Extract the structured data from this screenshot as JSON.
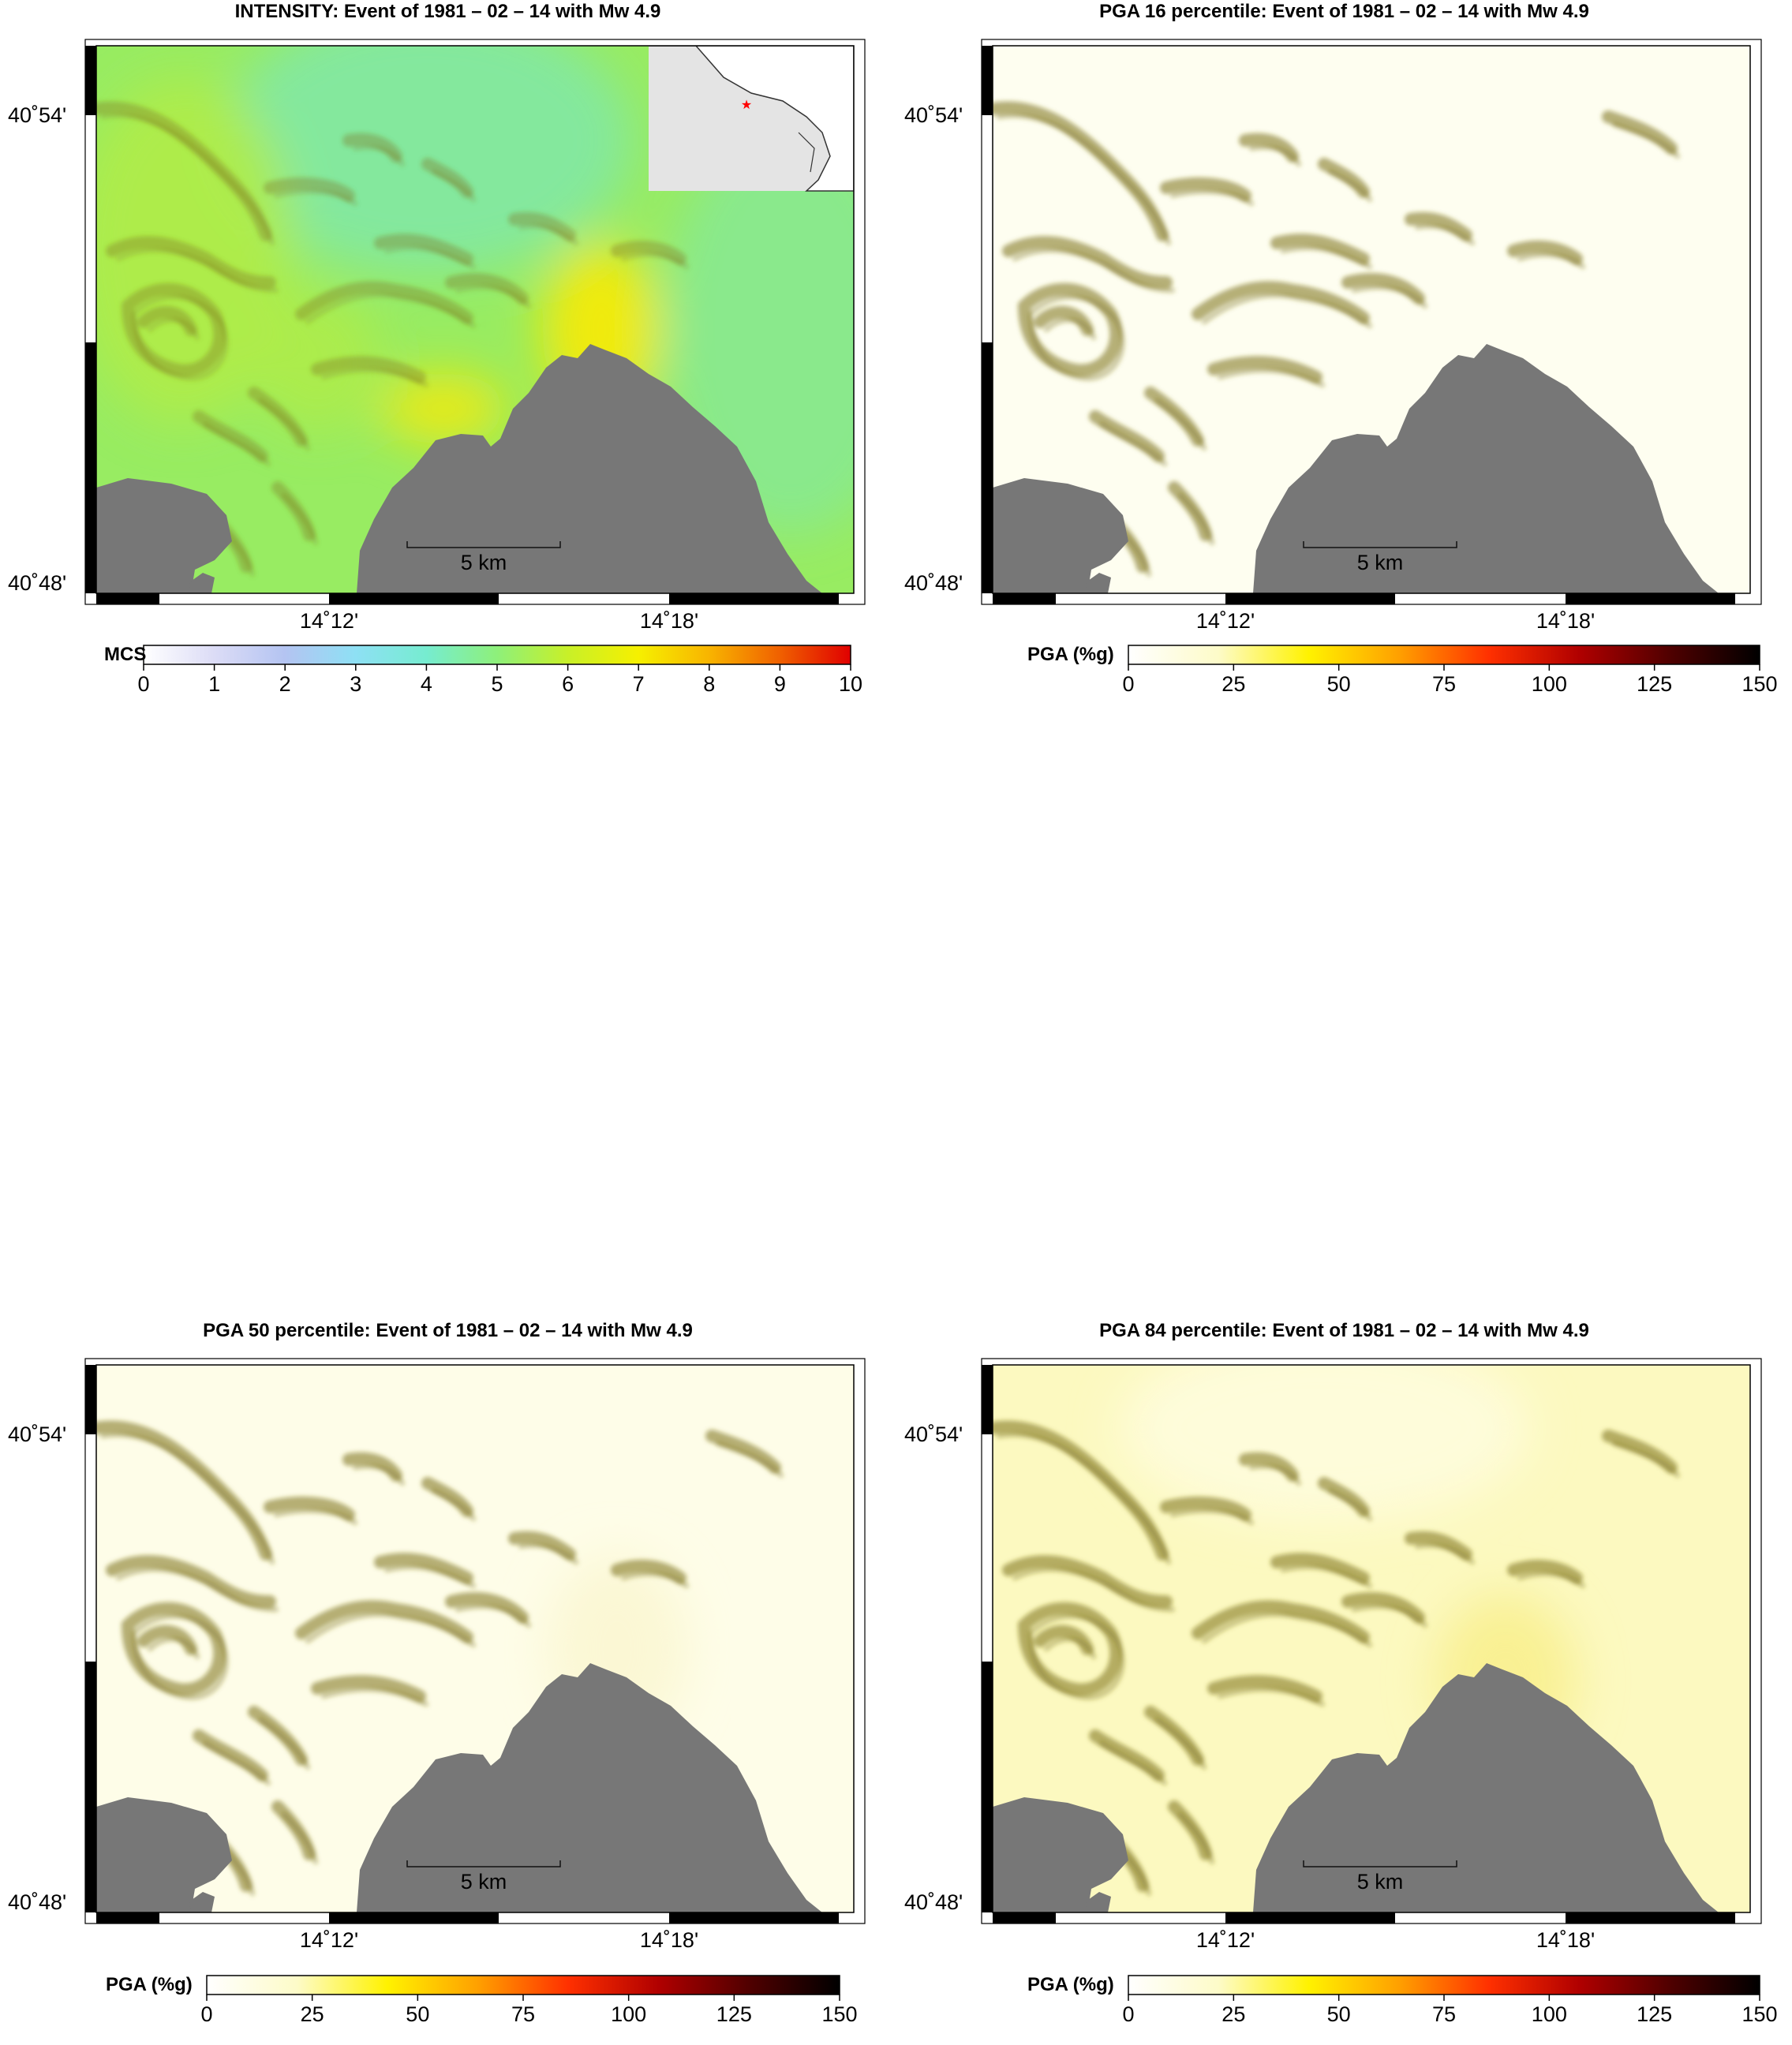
{
  "panels": [
    {
      "title": "INTENSITY: Event of 1981 – 02 – 14 with Mw 4.9",
      "colorbar": {
        "label": "MCS",
        "ticks": [
          "0",
          "1",
          "2",
          "3",
          "4",
          "5",
          "6",
          "7",
          "8",
          "9",
          "10"
        ],
        "stops": [
          "#ffffff",
          "#dcdcf6",
          "#b4c4f2",
          "#8ee0f4",
          "#76ecd0",
          "#8ef07a",
          "#c8f028",
          "#f6f000",
          "#f8b400",
          "#f06000",
          "#e00000"
        ]
      },
      "map_theme": "intensity",
      "has_inset": true
    },
    {
      "title": "PGA 16 percentile: Event of 1981 – 02 – 14 with Mw 4.9",
      "colorbar": {
        "label": "PGA (%g)",
        "ticks": [
          "0",
          "25",
          "50",
          "75",
          "100",
          "125",
          "150"
        ],
        "stops": [
          "#ffffff",
          "#fdfbc8",
          "#fff200",
          "#ffa000",
          "#ff3000",
          "#b00000",
          "#500000",
          "#000000"
        ]
      },
      "map_theme": "pga16",
      "has_inset": false
    },
    {
      "title": "PGA 50 percentile: Event of 1981 – 02 – 14 with Mw 4.9",
      "colorbar": {
        "label": "PGA (%g)",
        "ticks": [
          "0",
          "25",
          "50",
          "75",
          "100",
          "125",
          "150"
        ],
        "stops": [
          "#ffffff",
          "#fdfbc8",
          "#fff200",
          "#ffa000",
          "#ff3000",
          "#b00000",
          "#500000",
          "#000000"
        ]
      },
      "map_theme": "pga50",
      "has_inset": false
    },
    {
      "title": "PGA 84 percentile: Event of 1981 – 02 – 14 with Mw 4.9",
      "colorbar": {
        "label": "PGA (%g)",
        "ticks": [
          "0",
          "25",
          "50",
          "75",
          "100",
          "125",
          "150"
        ],
        "stops": [
          "#ffffff",
          "#fdfbc8",
          "#fff200",
          "#ffa000",
          "#ff3000",
          "#b00000",
          "#500000",
          "#000000"
        ]
      },
      "map_theme": "pga84",
      "has_inset": false
    }
  ],
  "map": {
    "lat_labels": [
      "40˚54'",
      "40˚48'"
    ],
    "lon_labels": [
      "14˚12'",
      "14˚18'"
    ],
    "scale_bar": "5 km",
    "sea_color": "#777777"
  },
  "colors": {
    "intensity_base": "#98ec62",
    "intensity_north": "#80e8a8",
    "intensity_hot": "#f0ea10",
    "intensity_west": "#b0ec48",
    "pga16_base": "#fefef0",
    "pga50_base": "#fefde8",
    "pga84_base": "#fcf9c0",
    "relief": "#7a7018",
    "epicenter": "#ff0000"
  }
}
